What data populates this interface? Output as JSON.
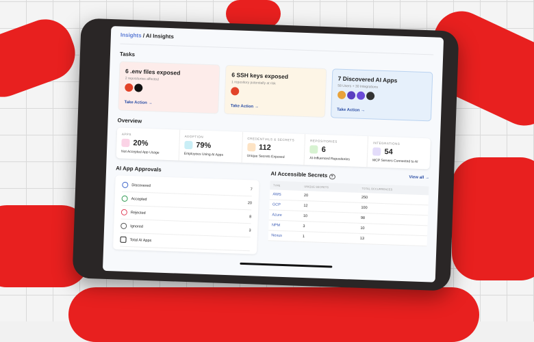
{
  "breadcrumb": {
    "parent": "Insights",
    "current": "AI Insights"
  },
  "tasks": {
    "title": "Tasks",
    "items": [
      {
        "title": "6 .env files exposed",
        "subtitle": "2 repositories affected",
        "action": "Take Action →",
        "bg": "#fdecea"
      },
      {
        "title": "6 SSH keys exposed",
        "subtitle": "1 repository potentially at risk",
        "action": "Take Action →",
        "bg": "#fdf5e6"
      },
      {
        "title": "7 Discovered AI Apps",
        "subtitle": "58 Users + 30 Integrations",
        "action": "Take Action →",
        "bg": "#e6f0fb"
      }
    ]
  },
  "overview": {
    "title": "Overview",
    "cards": [
      {
        "label": "Apps",
        "value": "20%",
        "desc": "Not Accepted App Usage",
        "color": "#fbd3e6"
      },
      {
        "label": "Adoption",
        "value": "79%",
        "desc": "Employees Using AI Apps",
        "color": "#c9eef6"
      },
      {
        "label": "Credentials & Secrets",
        "value": "112",
        "desc": "Unique Secrets Exposed",
        "color": "#fde3c4"
      },
      {
        "label": "Repositories",
        "value": "6",
        "desc": "AI-Influenced Repositories",
        "color": "#d7f2d1"
      },
      {
        "label": "Integrations",
        "value": "54",
        "desc": "MCP Servers Connected to AI",
        "color": "#e3dcfa"
      }
    ]
  },
  "approvals": {
    "title": "AI App Approvals",
    "rows": [
      {
        "label": "Discovered",
        "count": "7",
        "color": "#3b63c9"
      },
      {
        "label": "Accepted",
        "count": "20",
        "color": "#2f9a52"
      },
      {
        "label": "Rejected",
        "count": "8",
        "color": "#e0405a"
      },
      {
        "label": "Ignored",
        "count": "3",
        "color": "#555555"
      },
      {
        "label": "Total AI Apps",
        "count": "",
        "color": "#222222"
      }
    ]
  },
  "secrets": {
    "title": "AI Accessible Secrets",
    "help": "?",
    "view_all": "View all →",
    "columns": [
      "Type",
      "Unique Secrets",
      "Total Occurrences"
    ],
    "rows": [
      [
        "AWS",
        "20",
        "250"
      ],
      [
        "GCP",
        "12",
        "100"
      ],
      [
        "Azure",
        "10",
        "98"
      ],
      [
        "NPM",
        "3",
        "10"
      ],
      [
        "Nexus",
        "1",
        "13"
      ]
    ]
  }
}
